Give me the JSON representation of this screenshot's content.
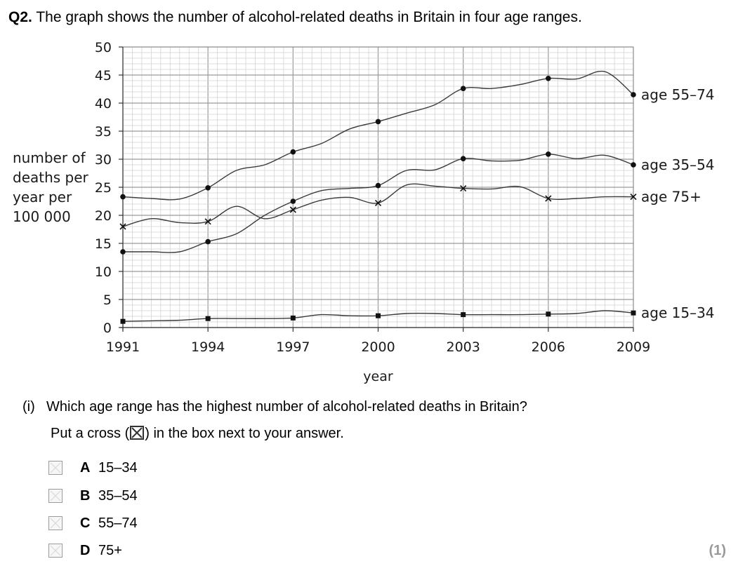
{
  "question": {
    "number": "Q2.",
    "text": "The graph shows the number of alcohol-related deaths in Britain in four age ranges."
  },
  "part": {
    "number": "(i)",
    "text": "Which age range has the highest number of alcohol-related deaths in Britain?",
    "instruction_before": "Put a cross (",
    "instruction_after": ") in the box next to your answer."
  },
  "options": [
    {
      "letter": "A",
      "label": "15–34"
    },
    {
      "letter": "B",
      "label": "35–54"
    },
    {
      "letter": "C",
      "label": "55–74"
    },
    {
      "letter": "D",
      "label": "75+"
    }
  ],
  "marks": "(1)",
  "chart_data": {
    "type": "line",
    "title": "",
    "xlabel": "year",
    "ylabel_lines": [
      "number of",
      "deaths per",
      "year per",
      "100 000"
    ],
    "xlim": [
      1991,
      2009
    ],
    "ylim": [
      0,
      50
    ],
    "xticks": [
      1991,
      1994,
      1997,
      2000,
      2003,
      2006,
      2009
    ],
    "yticks": [
      0,
      5,
      10,
      15,
      20,
      25,
      30,
      35,
      40,
      45,
      50
    ],
    "grid": true,
    "minor_grid_per_year": 3,
    "minor_grid_per_unit": 1,
    "series": [
      {
        "name": "age 55–74",
        "marker": "dot",
        "x": [
          1991,
          1992,
          1993,
          1994,
          1995,
          1996,
          1997,
          1998,
          1999,
          2000,
          2001,
          2002,
          2003,
          2004,
          2005,
          2006,
          2007,
          2008,
          2009
        ],
        "y": [
          23.3,
          23.0,
          22.9,
          24.9,
          28.0,
          29.0,
          31.3,
          32.8,
          35.4,
          36.7,
          38.2,
          39.7,
          42.6,
          42.6,
          43.3,
          44.4,
          44.3,
          45.6,
          41.5
        ],
        "markers_at": [
          1991,
          1994,
          1997,
          2000,
          2003,
          2006,
          2009
        ]
      },
      {
        "name": "age 35–54",
        "marker": "dot",
        "x": [
          1991,
          1992,
          1993,
          1994,
          1995,
          1996,
          1997,
          1998,
          1999,
          2000,
          2001,
          2002,
          2003,
          2004,
          2005,
          2006,
          2007,
          2008,
          2009
        ],
        "y": [
          13.5,
          13.5,
          13.5,
          15.3,
          16.7,
          20.0,
          22.5,
          24.4,
          24.8,
          25.3,
          28.0,
          28.1,
          30.1,
          29.7,
          29.8,
          30.9,
          30.1,
          30.7,
          29.0
        ],
        "markers_at": [
          1991,
          1994,
          1997,
          2000,
          2003,
          2006,
          2009
        ]
      },
      {
        "name": "age 75+",
        "marker": "cross",
        "x": [
          1991,
          1992,
          1993,
          1994,
          1995,
          1996,
          1997,
          1998,
          1999,
          2000,
          2001,
          2002,
          2003,
          2004,
          2005,
          2006,
          2007,
          2008,
          2009
        ],
        "y": [
          18.0,
          19.4,
          18.7,
          18.9,
          21.6,
          19.4,
          21.0,
          22.7,
          23.2,
          22.2,
          25.4,
          25.2,
          24.8,
          24.7,
          25.1,
          23.0,
          23.0,
          23.3,
          23.3
        ],
        "markers_at": [
          1991,
          1994,
          1997,
          2000,
          2003,
          2006,
          2009
        ]
      },
      {
        "name": "age 15–34",
        "marker": "square",
        "x": [
          1991,
          1992,
          1993,
          1994,
          1995,
          1996,
          1997,
          1998,
          1999,
          2000,
          2001,
          2002,
          2003,
          2004,
          2005,
          2006,
          2007,
          2008,
          2009
        ],
        "y": [
          1.1,
          1.2,
          1.3,
          1.6,
          1.6,
          1.6,
          1.7,
          2.3,
          2.1,
          2.1,
          2.5,
          2.5,
          2.3,
          2.3,
          2.3,
          2.4,
          2.5,
          3.0,
          2.6
        ],
        "markers_at": [
          1991,
          1994,
          1997,
          2000,
          2003,
          2006,
          2009
        ]
      }
    ]
  }
}
